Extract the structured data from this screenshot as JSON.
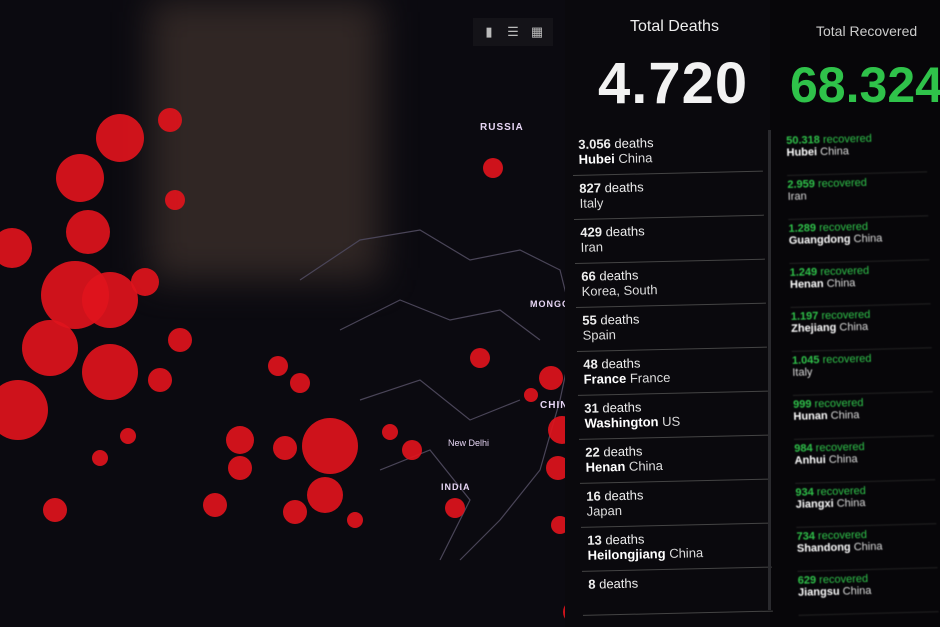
{
  "toolbar": {
    "icons": [
      "bookmark-icon",
      "list-icon",
      "qr-grid-icon"
    ]
  },
  "map": {
    "labels": [
      "RUSSIA",
      "MONGOLIA",
      "CHINA",
      "INDIA",
      "New Delhi"
    ],
    "dot_color": "#e0141c"
  },
  "deaths": {
    "title": "Total Deaths",
    "total": "4.720",
    "unit": "deaths",
    "items": [
      {
        "count": "3.056",
        "region": "Hubei",
        "country": "China"
      },
      {
        "count": "827",
        "region": "",
        "country": "Italy"
      },
      {
        "count": "429",
        "region": "",
        "country": "Iran"
      },
      {
        "count": "66",
        "region": "",
        "country": "Korea, South"
      },
      {
        "count": "55",
        "region": "",
        "country": "Spain"
      },
      {
        "count": "48",
        "region": "France",
        "country": "France"
      },
      {
        "count": "31",
        "region": "Washington",
        "country": "US"
      },
      {
        "count": "22",
        "region": "Henan",
        "country": "China"
      },
      {
        "count": "16",
        "region": "",
        "country": "Japan"
      },
      {
        "count": "13",
        "region": "Heilongjiang",
        "country": "China"
      },
      {
        "count": "8",
        "region": "",
        "country": ""
      }
    ]
  },
  "recovered": {
    "title": "Total Recovered",
    "total": "68.324",
    "unit": "recovered",
    "color": "#2fc24a",
    "items": [
      {
        "count": "50.318",
        "region": "Hubei",
        "country": "China"
      },
      {
        "count": "2.959",
        "region": "",
        "country": "Iran"
      },
      {
        "count": "1.289",
        "region": "Guangdong",
        "country": "China"
      },
      {
        "count": "1.249",
        "region": "Henan",
        "country": "China"
      },
      {
        "count": "1.197",
        "region": "Zhejiang",
        "country": "China"
      },
      {
        "count": "1.045",
        "region": "",
        "country": "Italy"
      },
      {
        "count": "999",
        "region": "Hunan",
        "country": "China"
      },
      {
        "count": "984",
        "region": "Anhui",
        "country": "China"
      },
      {
        "count": "934",
        "region": "Jiangxi",
        "country": "China"
      },
      {
        "count": "734",
        "region": "Shandong",
        "country": "China"
      },
      {
        "count": "629",
        "region": "Jiangsu",
        "country": "China"
      }
    ]
  }
}
